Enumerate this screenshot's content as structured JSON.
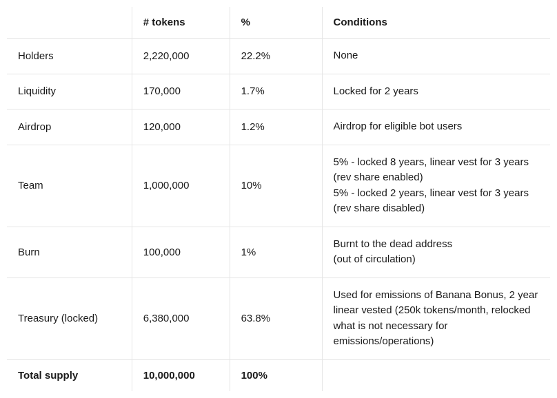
{
  "table": {
    "columns": [
      "",
      "# tokens",
      "%",
      "Conditions"
    ],
    "rows": [
      {
        "label": "Holders",
        "tokens": "2,220,000",
        "percent": "22.2%",
        "conditions": "None"
      },
      {
        "label": "Liquidity",
        "tokens": "170,000",
        "percent": "1.7%",
        "conditions": "Locked for 2 years"
      },
      {
        "label": "Airdrop",
        "tokens": "120,000",
        "percent": "1.2%",
        "conditions": "Airdrop for eligible bot users"
      },
      {
        "label": "Team",
        "tokens": "1,000,000",
        "percent": "10%",
        "conditions": "5% - locked 8 years, linear vest for 3 years (rev share enabled)\n5% - locked 2 years, linear vest for 3 years\n(rev share disabled)"
      },
      {
        "label": "Burn",
        "tokens": "100,000",
        "percent": "1%",
        "conditions": "Burnt to the dead address\n(out of circulation)"
      },
      {
        "label": "Treasury (locked)",
        "tokens": "6,380,000",
        "percent": "63.8%",
        "conditions": "Used for emissions of Banana Bonus, 2 year linear vested (250k tokens/month, relocked what is not necessary for emissions/operations)"
      }
    ],
    "total": {
      "label": "Total supply",
      "tokens": "10,000,000",
      "percent": "100%",
      "conditions": ""
    }
  },
  "colors": {
    "text": "#1a1a1a",
    "border": "#e5e5e5",
    "background": "#ffffff"
  }
}
